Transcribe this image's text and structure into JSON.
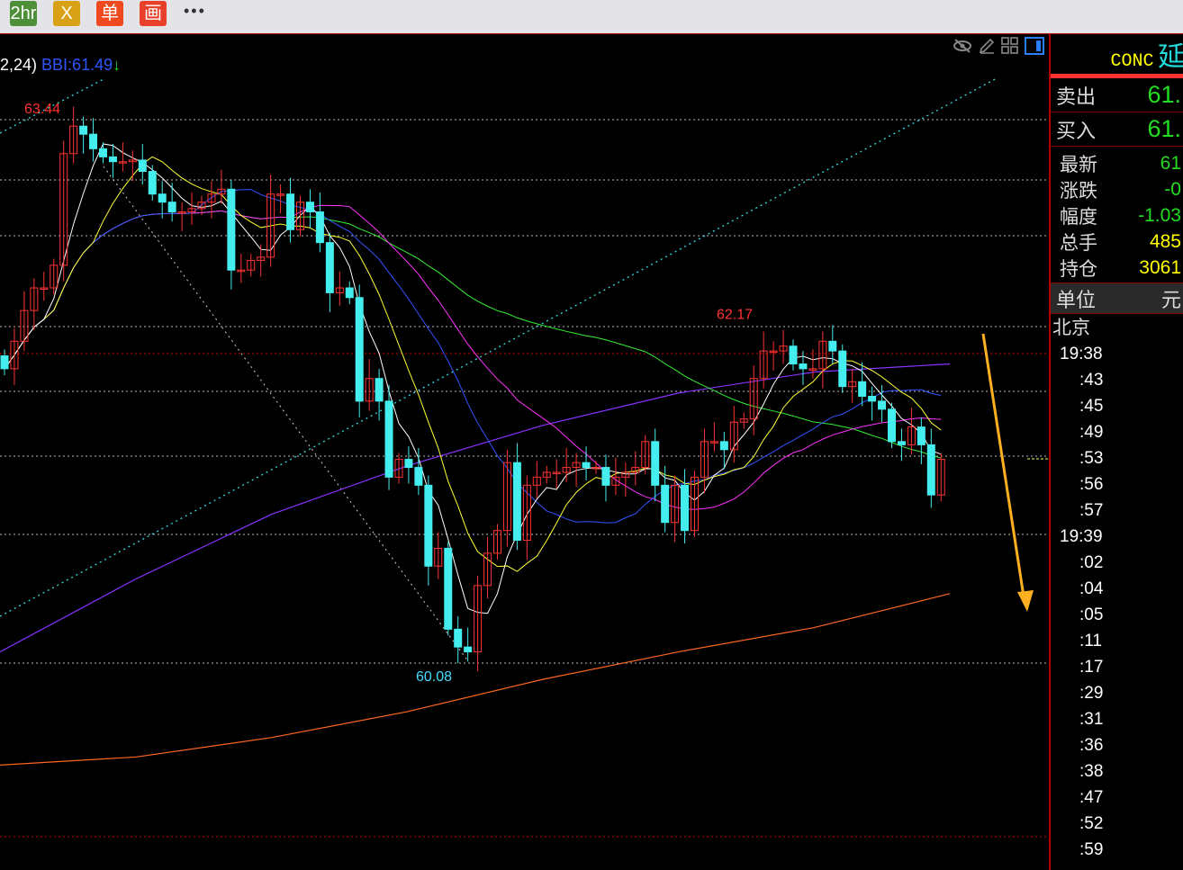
{
  "toolbar": {
    "buttons": [
      {
        "label": "2hr",
        "color": "#4e8f3a"
      },
      {
        "label": "X",
        "color": "#d9a116"
      },
      {
        "label": "单",
        "color": "#ee4a1e"
      },
      {
        "label": "画",
        "color": "#e8402a"
      }
    ],
    "more": "•••"
  },
  "legend": {
    "params": "2,24)",
    "bbi_label": "BBI:61.49",
    "arrow": "↓"
  },
  "chart_icons": [
    "eye-slash-icon",
    "pencil-icon",
    "grid-icon",
    "panel-toggle-icon"
  ],
  "panel": {
    "code": "CONC",
    "name": "延",
    "sell": {
      "label": "卖出",
      "value": "61."
    },
    "buy": {
      "label": "买入",
      "value": "61."
    },
    "rows": [
      {
        "label": "最新",
        "value": "61",
        "color": "#22dd22"
      },
      {
        "label": "涨跌",
        "value": "-0",
        "color": "#22dd22"
      },
      {
        "label": "幅度",
        "value": "-1.03",
        "color": "#22dd22"
      },
      {
        "label": "总手",
        "value": "485",
        "color": "#ffff00"
      },
      {
        "label": "持仓",
        "value": "3061",
        "color": "#ffff00"
      }
    ],
    "unit": {
      "label": "单位",
      "value": "元"
    },
    "city": "北京",
    "times": [
      "19:38",
      ":43",
      ":45",
      ":49",
      ":53",
      ":56",
      ":57",
      "19:39",
      ":02",
      ":04",
      ":05",
      ":11",
      ":17",
      ":29",
      ":31",
      ":36",
      ":38",
      ":47",
      ":52",
      ":59"
    ]
  },
  "chart_data": {
    "type": "candlestick",
    "annotations": [
      {
        "label": "63.44",
        "price": 63.44,
        "color": "#ff3333"
      },
      {
        "label": "62.17",
        "price": 62.17,
        "color": "#ff3333"
      },
      {
        "label": "60.08",
        "price": 60.08,
        "color": "#44ddff"
      }
    ],
    "colors": {
      "up": "#ff3333",
      "down": "#44eeee",
      "ma5": "#ffffff",
      "ma10": "#ffff33",
      "ma20": "#3355ff",
      "ma30": "#ff33ff",
      "ma60": "#33ee33",
      "long_purple": "#8833ff",
      "long_orange": "#ff6622",
      "arrow": "#ffb020"
    },
    "closes": [
      61.9,
      62.07,
      62.26,
      62.4,
      62.4,
      62.54,
      63.23,
      63.4,
      63.35,
      63.26,
      63.21,
      63.18,
      63.18,
      63.19,
      63.12,
      62.98,
      62.93,
      62.87,
      62.87,
      62.89,
      62.93,
      62.98,
      63.01,
      62.51,
      62.51,
      62.57,
      62.59,
      62.98,
      62.98,
      62.76,
      62.93,
      62.87,
      62.68,
      62.37,
      62.4,
      62.34,
      61.7,
      61.84,
      61.7,
      61.23,
      61.34,
      61.29,
      61.18,
      60.68,
      60.79,
      60.29,
      60.18,
      60.15,
      60.56,
      60.76,
      60.9,
      61.32,
      60.84,
      61.18,
      61.23,
      61.26,
      61.26,
      61.29,
      61.32,
      61.29,
      61.29,
      61.18,
      61.23,
      61.26,
      61.29,
      61.45,
      61.18,
      60.95,
      61.18,
      60.9,
      61.23,
      61.45,
      61.45,
      61.4,
      61.57,
      61.59,
      61.84,
      62.01,
      62.01,
      62.04,
      61.93,
      61.9,
      61.9,
      62.07,
      62.01,
      61.79,
      61.82,
      61.73,
      61.7,
      61.65,
      61.45,
      61.43,
      61.54,
      61.43,
      61.12,
      61.34
    ],
    "long_purple": [
      60.15,
      60.6,
      61.0,
      61.3,
      61.55,
      61.75,
      61.88,
      61.93
    ],
    "long_orange": [
      59.45,
      59.5,
      59.62,
      59.78,
      59.98,
      60.15,
      60.3,
      60.51
    ]
  }
}
